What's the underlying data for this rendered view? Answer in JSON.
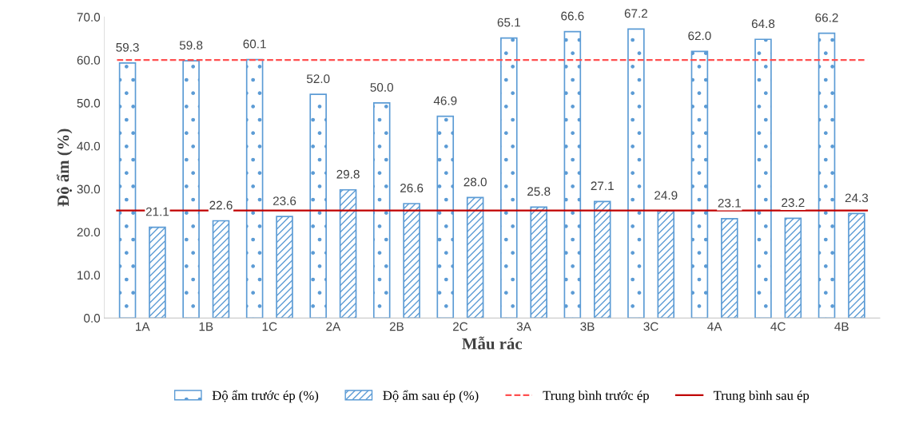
{
  "chart_data": {
    "type": "bar",
    "xlabel": "Mẫu rác",
    "ylabel": "Độ ẩm (%)",
    "categories": [
      "1A",
      "1B",
      "1C",
      "2A",
      "2B",
      "2C",
      "3A",
      "3B",
      "3C",
      "4A",
      "4C",
      "4B"
    ],
    "series": [
      {
        "name": "Độ ẩm trước ép (%)",
        "color": "#5b9bd5",
        "values": [
          59.3,
          59.8,
          60.1,
          52.0,
          50.0,
          46.9,
          65.1,
          66.6,
          67.2,
          62.0,
          64.8,
          66.2
        ],
        "value_labels": [
          "59.3",
          "59.8",
          "60.1",
          "52.0",
          "50.0",
          "46.9",
          "65.1",
          "66.6",
          "67.2",
          "62.0",
          "64.8",
          "66.2"
        ]
      },
      {
        "name": "Độ ẩm sau ép (%)",
        "color": "#5b9bd5",
        "values": [
          21.1,
          22.6,
          23.6,
          29.8,
          26.6,
          28.0,
          25.8,
          27.1,
          24.9,
          23.1,
          23.2,
          24.3
        ],
        "value_labels": [
          "21.1",
          "22.6",
          "23.6",
          "29.8",
          "26.6",
          "28.0",
          "25.8",
          "27.1",
          "24.9",
          "23.1",
          "23.2",
          "24.3"
        ]
      }
    ],
    "ylim": [
      0,
      70
    ],
    "yticks": [
      {
        "value": 0,
        "label": "0.0"
      },
      {
        "value": 10,
        "label": "10.0"
      },
      {
        "value": 20,
        "label": "20.0"
      },
      {
        "value": 30,
        "label": "30.0"
      },
      {
        "value": 40,
        "label": "40.0"
      },
      {
        "value": 50,
        "label": "50.0"
      },
      {
        "value": 60,
        "label": "60.0"
      },
      {
        "value": 70,
        "label": "70.0"
      }
    ],
    "ref_lines": [
      {
        "axis": "y",
        "value": 60.0,
        "label": "Trung bình trước ép",
        "color": "#ff5050",
        "line_style": "dashed"
      },
      {
        "axis": "y",
        "value": 25.0,
        "label": "Trung bình sau ép",
        "color": "#c00000",
        "line_style": "solid"
      }
    ],
    "legend": "bottom",
    "grid": false
  }
}
